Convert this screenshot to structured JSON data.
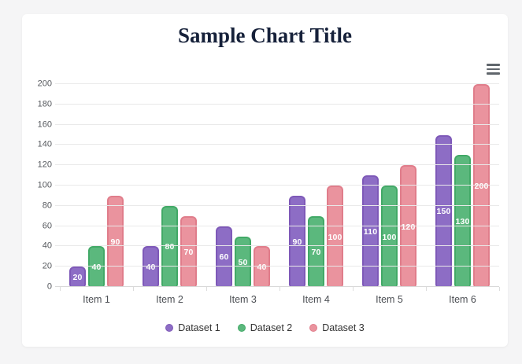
{
  "page": {
    "background_color": "#f5f5f6",
    "card_color": "#ffffff"
  },
  "header": {
    "icons": {
      "menu": "hamburger"
    }
  },
  "chart_data": {
    "type": "bar",
    "title": "Sample Chart Title",
    "title_color": "#16213a",
    "categories": [
      "Item 1",
      "Item 2",
      "Item 3",
      "Item 4",
      "Item 5",
      "Item 6"
    ],
    "series": [
      {
        "name": "Dataset 1",
        "color": "#8d6dc5",
        "border_color": "#7e59b8",
        "values": [
          20,
          40,
          60,
          90,
          110,
          150
        ]
      },
      {
        "name": "Dataset 2",
        "color": "#5bb87d",
        "border_color": "#42a967",
        "values": [
          40,
          80,
          50,
          70,
          100,
          130
        ]
      },
      {
        "name": "Dataset 3",
        "color": "#ea939e",
        "border_color": "#e07d8b",
        "values": [
          90,
          70,
          40,
          100,
          120,
          200
        ]
      }
    ],
    "xlabel": "",
    "ylabel": "",
    "ylim": [
      0,
      200
    ],
    "y_ticks": [
      0,
      20,
      40,
      60,
      80,
      100,
      120,
      140,
      160,
      180,
      200
    ],
    "grid": true,
    "data_labels": true,
    "data_label_color": "#ffffff",
    "legend_position": "bottom"
  }
}
